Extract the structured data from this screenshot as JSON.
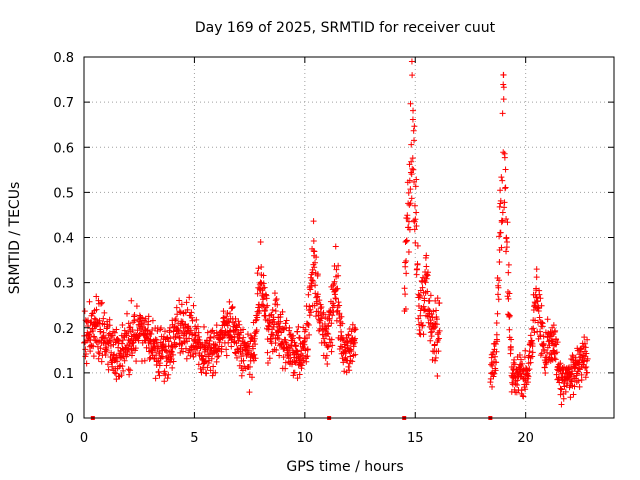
{
  "chart_data": {
    "type": "scatter",
    "title": "Day 169 of 2025, SRMTID for receiver cuut",
    "xlabel": "GPS time / hours",
    "ylabel": "SRMTID / TECUs",
    "xlim": [
      0,
      24
    ],
    "ylim": [
      0,
      0.8
    ],
    "xticks": [
      0,
      5,
      10,
      15,
      20
    ],
    "xtick_labels": [
      "0",
      "5",
      "10",
      "15",
      "20"
    ],
    "yticks": [
      0,
      0.1,
      0.2,
      0.3,
      0.4,
      0.5,
      0.6,
      0.7,
      0.8
    ],
    "ytick_labels": [
      "0",
      "0.1",
      "0.2",
      "0.3",
      "0.4",
      "0.5",
      "0.6",
      "0.7",
      "0.8"
    ],
    "grid": true,
    "marker_color": "#ff0000",
    "marker": "plus",
    "segments": [
      {
        "start": 0.0,
        "end": 12.3,
        "base": 0.17,
        "spread": 0.06
      },
      {
        "start": 14.5,
        "end": 16.1,
        "base": 0.22,
        "spread": 0.08
      },
      {
        "start": 18.4,
        "end": 22.8,
        "base": 0.11,
        "spread": 0.05
      }
    ],
    "peaks": [
      {
        "x": 8.0,
        "y": 0.39
      },
      {
        "x": 10.4,
        "y": 0.37
      },
      {
        "x": 11.4,
        "y": 0.38
      },
      {
        "x": 14.85,
        "y": 0.79
      },
      {
        "x": 15.5,
        "y": 0.36
      },
      {
        "x": 19.0,
        "y": 0.76
      },
      {
        "x": 20.5,
        "y": 0.33
      },
      {
        "x": 21.2,
        "y": 0.2
      }
    ],
    "gap_markers_x": [
      0.4,
      11.1,
      14.5,
      18.4
    ]
  }
}
